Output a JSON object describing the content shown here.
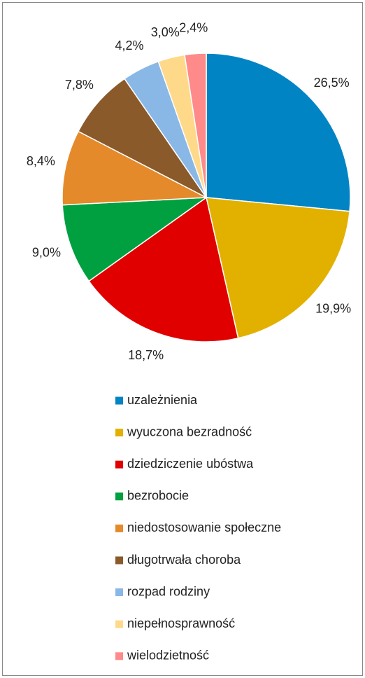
{
  "chart_data": {
    "type": "pie",
    "categories": [
      "uzależnienia",
      "wyuczona bezradność",
      "dziedziczenie ubóstwa",
      "bezrobocie",
      "niedostosowanie społeczne",
      "długotrwała choroba",
      "rozpad rodziny",
      "niepełnosprawność",
      "wielodzietność"
    ],
    "values": [
      26.5,
      19.9,
      18.7,
      9.0,
      8.4,
      7.8,
      4.2,
      3.0,
      2.4
    ],
    "value_labels": [
      "26,5%",
      "19,9%",
      "18,7%",
      "9,0%",
      "8,4%",
      "7,8%",
      "4,2%",
      "3,0%",
      "2,4%"
    ],
    "colors": [
      "#0084c4",
      "#e2b100",
      "#e00000",
      "#00a040",
      "#e58a2a",
      "#8a5a2a",
      "#8ab8e6",
      "#ffd98a",
      "#ff8a8a"
    ],
    "legend": "bottom"
  }
}
